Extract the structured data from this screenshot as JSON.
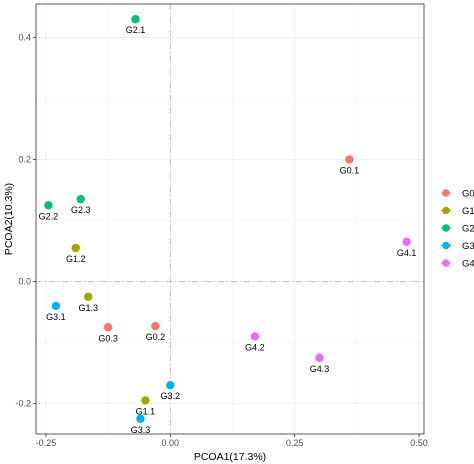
{
  "chart_data": {
    "type": "scatter",
    "xlabel": "PCOA1(17.3%)",
    "ylabel": "PCOA2(10.3%)",
    "xlim": [
      -0.27,
      0.51
    ],
    "ylim": [
      -0.25,
      0.455
    ],
    "x_ticks": [
      -0.25,
      0.0,
      0.25,
      0.5
    ],
    "x_tick_labels": [
      "-0.25",
      "0.00",
      "0.25",
      "0.50"
    ],
    "y_ticks": [
      -0.2,
      0.0,
      0.2,
      0.4
    ],
    "y_tick_labels": [
      "-0.2",
      "0.0",
      "0.2",
      "0.4"
    ],
    "grid": true,
    "reference_lines": {
      "x": 0,
      "y": 0,
      "style": "dash-dot"
    },
    "legend_position": "right",
    "series": [
      {
        "name": "G0",
        "legend_label": "G0",
        "color": "#F8766D",
        "points": [
          {
            "label": "G0.1",
            "x": 0.36,
            "y": 0.2
          },
          {
            "label": "G0.2",
            "x": -0.03,
            "y": -0.073
          },
          {
            "label": "G0.3",
            "x": -0.125,
            "y": -0.075
          }
        ]
      },
      {
        "name": "G1",
        "legend_label": "G1",
        "color": "#A3A500",
        "points": [
          {
            "label": "G1.1",
            "x": -0.05,
            "y": -0.195
          },
          {
            "label": "G1.2",
            "x": -0.19,
            "y": 0.055
          },
          {
            "label": "G1.3",
            "x": -0.165,
            "y": -0.025
          }
        ]
      },
      {
        "name": "G2",
        "legend_label": "G2",
        "color": "#00BF7D",
        "points": [
          {
            "label": "G2.1",
            "x": -0.07,
            "y": 0.43
          },
          {
            "label": "G2.2",
            "x": -0.245,
            "y": 0.125
          },
          {
            "label": "G2.3",
            "x": -0.18,
            "y": 0.135
          }
        ]
      },
      {
        "name": "G3",
        "legend_label": "G3",
        "color": "#00B0F6",
        "points": [
          {
            "label": "G3.1",
            "x": -0.23,
            "y": -0.04
          },
          {
            "label": "G3.2",
            "x": 0.0,
            "y": -0.17
          },
          {
            "label": "G3.3",
            "x": -0.06,
            "y": -0.225
          }
        ]
      },
      {
        "name": "G4",
        "legend_label": "G4",
        "color": "#E76BF3",
        "points": [
          {
            "label": "G4.1",
            "x": 0.475,
            "y": 0.065
          },
          {
            "label": "G4.2",
            "x": 0.17,
            "y": -0.09
          },
          {
            "label": "G4.3",
            "x": 0.3,
            "y": -0.125
          }
        ]
      }
    ]
  }
}
